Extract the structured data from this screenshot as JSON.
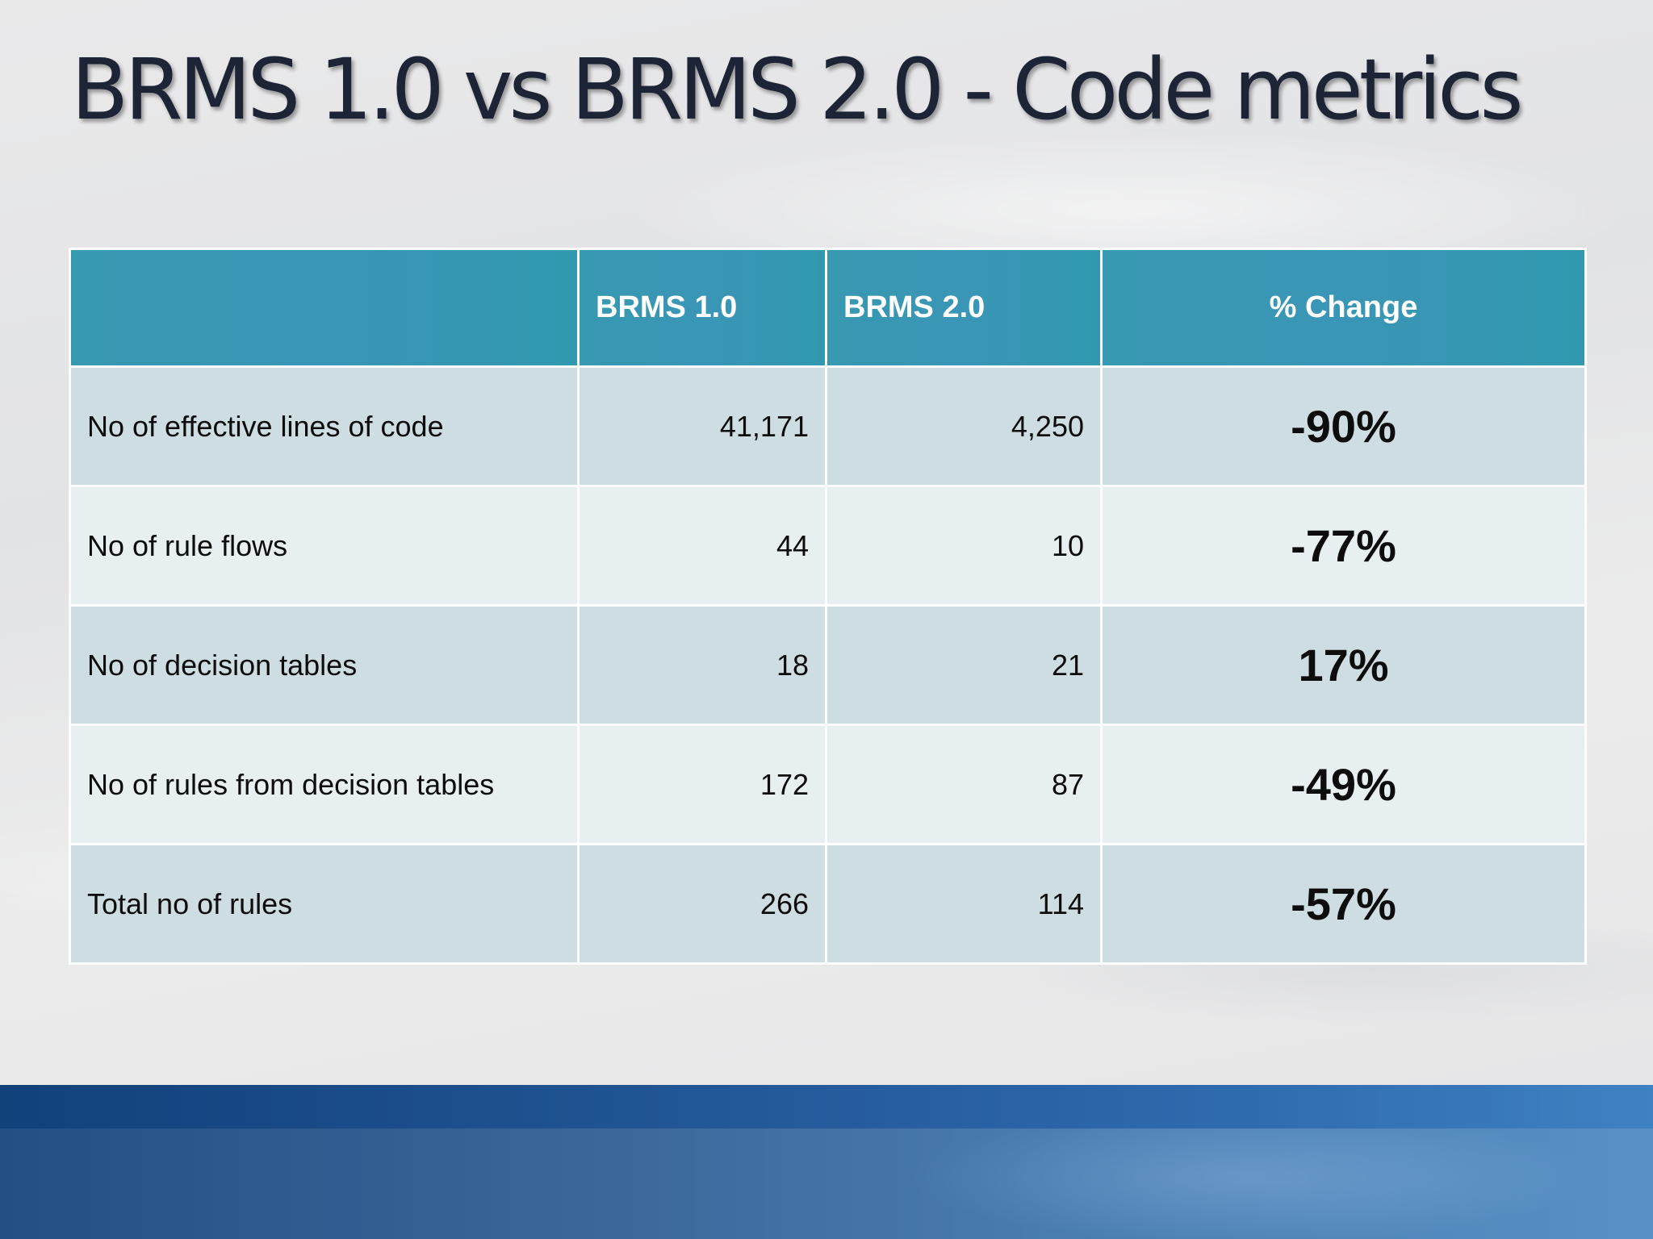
{
  "slide": {
    "title": "BRMS 1.0 vs BRMS 2.0 - Code metrics"
  },
  "table": {
    "headers": [
      "",
      "BRMS 1.0",
      "BRMS 2.0",
      "% Change"
    ],
    "rows": [
      {
        "metric": "No of effective lines of code",
        "brms1": "41,171",
        "brms2": "4,250",
        "change": "-90%"
      },
      {
        "metric": "No of rule flows",
        "brms1": "44",
        "brms2": "10",
        "change": "-77%"
      },
      {
        "metric": "No of decision tables",
        "brms1": "18",
        "brms2": "21",
        "change": "17%"
      },
      {
        "metric": "No of rules from decision tables",
        "brms1": "172",
        "brms2": "87",
        "change": "-49%"
      },
      {
        "metric": "Total no of rules",
        "brms1": "266",
        "brms2": "114",
        "change": "-57%"
      }
    ]
  },
  "colors": {
    "header_teal": "#3799b2",
    "row_dark": "#cddde2",
    "row_light": "#e7eff0",
    "footer_blue": "#2967ad",
    "title_text": "#1c2436"
  }
}
